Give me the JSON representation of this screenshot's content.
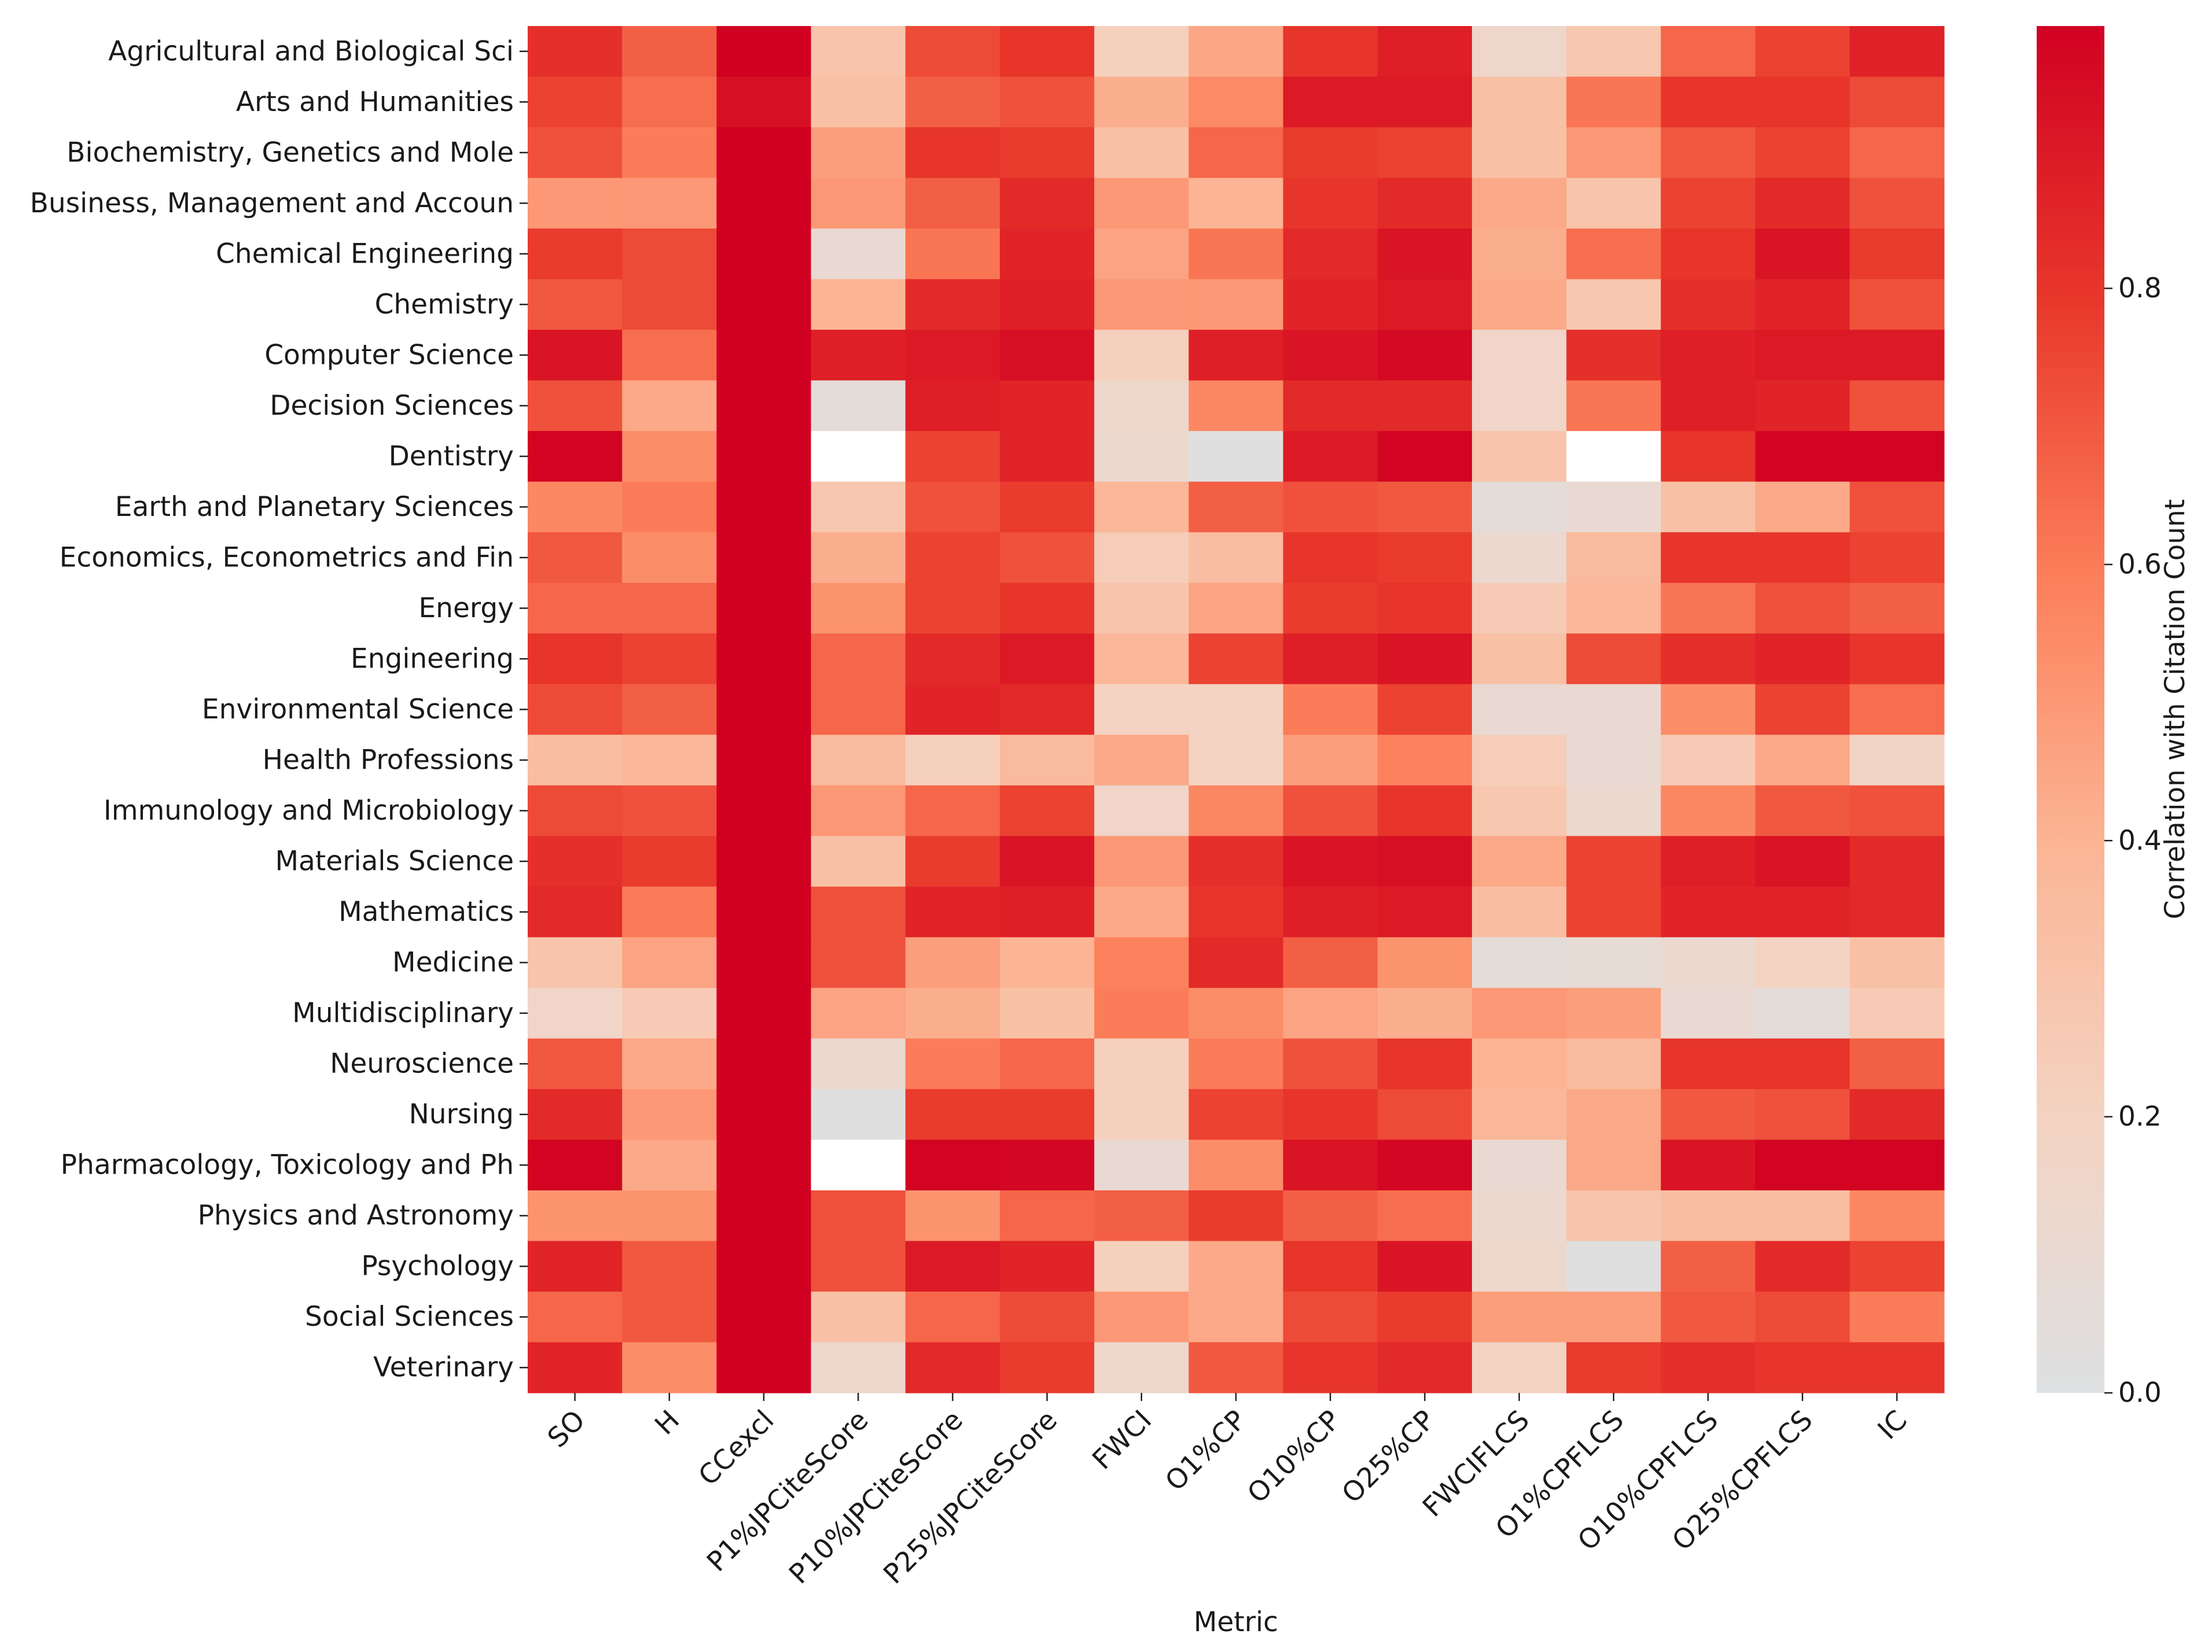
{
  "chart_data": {
    "type": "heatmap",
    "title": "",
    "xlabel": "Metric",
    "ylabel": "",
    "colorbar_label": "Correlation with Citation Count",
    "colorbar_ticks": [
      0.0,
      0.2,
      0.4,
      0.6,
      0.8
    ],
    "colorbar_tick_labels": [
      "0.0",
      "0.2",
      "0.4",
      "0.6",
      "0.8"
    ],
    "vmin": 0.0,
    "vmax": 0.99,
    "colorscale": [
      "#dde0e2",
      "#f4d3c2",
      "#fbb595",
      "#fc7e59",
      "#e8372b",
      "#d10122"
    ],
    "x_categories": [
      "SO",
      "H",
      "CCexcl",
      "P1%JPCiteScore",
      "P10%JPCiteScore",
      "P25%JPCiteScore",
      "FWCI",
      "O1%CP",
      "O10%CP",
      "O25%CP",
      "FWCIFLCS",
      "O1%CPFLCS",
      "O10%CPFLCS",
      "O25%CPFLCS",
      "IC"
    ],
    "y_categories": [
      "Agricultural and Biological Sci",
      "Arts and Humanities",
      "Biochemistry, Genetics and Mole",
      "Business, Management and Accoun",
      "Chemical Engineering",
      "Chemistry",
      "Computer Science",
      "Decision Sciences",
      "Dentistry",
      "Earth and Planetary Sciences",
      "Economics, Econometrics and Fin",
      "Energy",
      "Engineering",
      "Environmental Science",
      "Health Professions",
      "Immunology and Microbiology",
      "Materials Science",
      "Mathematics",
      "Medicine",
      "Multidisciplinary",
      "Neuroscience",
      "Nursing",
      "Pharmacology, Toxicology and Ph",
      "Physics and Astronomy",
      "Psychology",
      "Social Sciences",
      "Veterinary"
    ],
    "values": [
      [
        0.82,
        0.68,
        0.99,
        0.3,
        0.74,
        0.8,
        0.22,
        0.45,
        0.8,
        0.88,
        0.15,
        0.28,
        0.66,
        0.76,
        0.87
      ],
      [
        0.76,
        0.64,
        0.94,
        0.32,
        0.68,
        0.72,
        0.42,
        0.55,
        0.9,
        0.9,
        0.32,
        0.62,
        0.8,
        0.8,
        0.74
      ],
      [
        0.72,
        0.6,
        0.99,
        0.48,
        0.8,
        0.78,
        0.32,
        0.66,
        0.78,
        0.76,
        0.32,
        0.5,
        0.7,
        0.76,
        0.66
      ],
      [
        0.5,
        0.5,
        0.99,
        0.5,
        0.68,
        0.84,
        0.5,
        0.4,
        0.8,
        0.84,
        0.44,
        0.3,
        0.76,
        0.84,
        0.72
      ],
      [
        0.78,
        0.74,
        0.99,
        0.1,
        0.62,
        0.86,
        0.46,
        0.62,
        0.84,
        0.92,
        0.42,
        0.64,
        0.8,
        0.92,
        0.78
      ],
      [
        0.7,
        0.74,
        0.99,
        0.4,
        0.84,
        0.88,
        0.5,
        0.5,
        0.86,
        0.9,
        0.44,
        0.28,
        0.82,
        0.86,
        0.72
      ],
      [
        0.92,
        0.64,
        0.99,
        0.88,
        0.9,
        0.94,
        0.22,
        0.88,
        0.92,
        0.96,
        0.16,
        0.82,
        0.88,
        0.9,
        0.9
      ],
      [
        0.72,
        0.44,
        0.99,
        0.06,
        0.88,
        0.86,
        0.14,
        0.56,
        0.84,
        0.84,
        0.16,
        0.62,
        0.88,
        0.86,
        0.72
      ],
      [
        0.98,
        0.54,
        0.99,
        -0.05,
        0.76,
        0.86,
        0.12,
        0.02,
        0.9,
        0.98,
        0.3,
        -0.05,
        0.8,
        0.98,
        0.98
      ],
      [
        0.56,
        0.6,
        0.99,
        0.28,
        0.72,
        0.78,
        0.38,
        0.68,
        0.72,
        0.7,
        0.06,
        0.1,
        0.32,
        0.44,
        0.72
      ],
      [
        0.7,
        0.54,
        0.99,
        0.42,
        0.76,
        0.72,
        0.24,
        0.34,
        0.8,
        0.78,
        0.12,
        0.36,
        0.8,
        0.8,
        0.76
      ],
      [
        0.66,
        0.66,
        0.99,
        0.52,
        0.76,
        0.8,
        0.3,
        0.46,
        0.78,
        0.8,
        0.26,
        0.38,
        0.62,
        0.72,
        0.68
      ],
      [
        0.8,
        0.76,
        0.99,
        0.66,
        0.84,
        0.9,
        0.38,
        0.76,
        0.88,
        0.92,
        0.32,
        0.74,
        0.82,
        0.86,
        0.8
      ],
      [
        0.74,
        0.68,
        0.99,
        0.66,
        0.86,
        0.84,
        0.2,
        0.2,
        0.6,
        0.76,
        0.1,
        0.1,
        0.54,
        0.76,
        0.64
      ],
      [
        0.34,
        0.38,
        0.99,
        0.36,
        0.22,
        0.36,
        0.44,
        0.2,
        0.48,
        0.58,
        0.24,
        0.1,
        0.26,
        0.44,
        0.18
      ],
      [
        0.74,
        0.72,
        0.99,
        0.5,
        0.66,
        0.76,
        0.16,
        0.56,
        0.72,
        0.8,
        0.28,
        0.12,
        0.56,
        0.7,
        0.72
      ],
      [
        0.82,
        0.78,
        0.99,
        0.32,
        0.78,
        0.92,
        0.5,
        0.82,
        0.92,
        0.94,
        0.44,
        0.76,
        0.88,
        0.92,
        0.84
      ],
      [
        0.84,
        0.6,
        0.99,
        0.72,
        0.86,
        0.88,
        0.44,
        0.8,
        0.88,
        0.9,
        0.34,
        0.76,
        0.86,
        0.86,
        0.84
      ],
      [
        0.3,
        0.46,
        0.99,
        0.72,
        0.48,
        0.4,
        0.58,
        0.84,
        0.68,
        0.52,
        0.06,
        0.08,
        0.12,
        0.2,
        0.32
      ],
      [
        0.16,
        0.26,
        0.99,
        0.46,
        0.42,
        0.32,
        0.6,
        0.54,
        0.46,
        0.42,
        0.5,
        0.48,
        0.1,
        0.06,
        0.26
      ],
      [
        0.7,
        0.44,
        0.99,
        0.12,
        0.6,
        0.66,
        0.22,
        0.6,
        0.72,
        0.8,
        0.4,
        0.36,
        0.8,
        0.8,
        0.68
      ],
      [
        0.84,
        0.5,
        0.99,
        0.02,
        0.78,
        0.78,
        0.22,
        0.76,
        0.8,
        0.74,
        0.38,
        0.44,
        0.7,
        0.72,
        0.84
      ],
      [
        0.98,
        0.44,
        0.99,
        -0.05,
        0.98,
        0.97,
        0.1,
        0.54,
        0.92,
        0.97,
        0.1,
        0.44,
        0.92,
        0.98,
        0.98
      ],
      [
        0.52,
        0.52,
        0.99,
        0.72,
        0.52,
        0.66,
        0.68,
        0.78,
        0.68,
        0.64,
        0.12,
        0.3,
        0.34,
        0.34,
        0.56
      ],
      [
        0.86,
        0.7,
        0.99,
        0.72,
        0.9,
        0.86,
        0.22,
        0.44,
        0.8,
        0.92,
        0.14,
        0.02,
        0.68,
        0.84,
        0.76
      ],
      [
        0.66,
        0.7,
        0.99,
        0.32,
        0.66,
        0.74,
        0.5,
        0.44,
        0.74,
        0.78,
        0.48,
        0.48,
        0.7,
        0.74,
        0.6
      ],
      [
        0.86,
        0.54,
        0.99,
        0.14,
        0.84,
        0.78,
        0.14,
        0.7,
        0.8,
        0.84,
        0.2,
        0.78,
        0.82,
        0.8,
        0.8
      ]
    ]
  }
}
